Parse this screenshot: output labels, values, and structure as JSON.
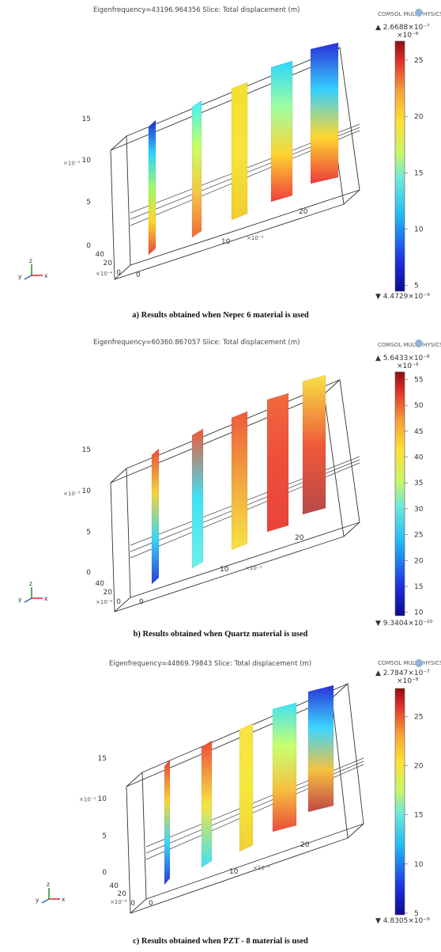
{
  "figures": [
    {
      "id": "a",
      "header": "Eigenfrequency=43196.964356    Slice: Total displacement (m)",
      "watermark": "COMSOL MULTIPHYSICS",
      "colorbar": {
        "max_label": "▲ 2.6688×10⁻⁷",
        "scale_label": "×10⁻⁸",
        "min_label": "▼ 4.4729×10⁻⁹",
        "ticks": [
          "25",
          "20",
          "15",
          "10",
          "5"
        ],
        "range": [
          4.4729,
          26.688
        ]
      },
      "axes": {
        "z_ticks": [
          "15",
          "10",
          "5",
          "0"
        ],
        "z_scale": "×10⁻³",
        "y_ticks": [
          "40",
          "20",
          "0"
        ],
        "y_scale": "×10⁻⁴",
        "x_ticks": [
          "10",
          "20"
        ],
        "x_scale": "×10⁻³",
        "x0": "0"
      },
      "slice_colors": [
        [
          "#1e2dd6",
          "#2ad6ff",
          "#9ff86a",
          "#ffd62a",
          "#e8443b"
        ],
        [
          "#3cf0ff",
          "#c6ff66",
          "#f5c84a",
          "#ee6b3a"
        ],
        [
          "#f3df2e",
          "#f7e43a",
          "#f0cd2c"
        ],
        [
          "#2ad6ff",
          "#a0ffa0",
          "#ffd230",
          "#ee3e3b"
        ],
        [
          "#2a2fd9",
          "#37d0ff",
          "#ffd830",
          "#ec3b3b"
        ]
      ],
      "caption": "a) Results obtained when Nepec 6 material is used"
    },
    {
      "id": "b",
      "header": "Eigenfrequency=60360.867057    Slice: Total displacement (m)",
      "watermark": "COMSOL MULTIPHYSICS",
      "colorbar": {
        "max_label": "▲ 5.6433×10⁻⁸",
        "scale_label": "×10⁻⁹",
        "min_label": "▼ 9.3404×10⁻¹⁰",
        "ticks": [
          "55",
          "50",
          "45",
          "40",
          "35",
          "30",
          "25",
          "20",
          "15",
          "10"
        ],
        "range": [
          9.3404,
          56.433
        ]
      },
      "axes": {
        "z_ticks": [
          "15",
          "10",
          "5",
          "0"
        ],
        "z_scale": "×10⁻³",
        "y_ticks": [
          "40",
          "20",
          "0"
        ],
        "y_scale": "×10⁻⁴",
        "x_ticks": [
          "10",
          "20"
        ],
        "x_scale": "×10⁻³",
        "x0": "0"
      },
      "slice_colors": [
        [
          "#ee4a3a",
          "#f0d63a",
          "#3ad6f8",
          "#2d3ad6"
        ],
        [
          "#ef5a3a",
          "#3fe2f5",
          "#6ff0e8"
        ],
        [
          "#ee5a3a",
          "#f1a640",
          "#f7e343"
        ],
        [
          "#ef6a3d",
          "#ee4d3a",
          "#e8443b"
        ],
        [
          "#f7e343",
          "#ef5a3a",
          "#b94848"
        ]
      ],
      "caption": "b) Results obtained when Quartz material is used"
    },
    {
      "id": "c",
      "header": "Eigenfrequency=44869.79843    Slice: Total displacement (m)",
      "watermark": "COMSOL MULTIPHYSICS",
      "colorbar": {
        "max_label": "▲ 2.7847×10⁻⁷",
        "scale_label": "×10⁻⁸",
        "min_label": "▼ 4.8305×10⁻⁹",
        "ticks": [
          "25",
          "20",
          "15",
          "10",
          "5"
        ],
        "range": [
          4.8305,
          27.847
        ]
      },
      "axes": {
        "z_ticks": [
          "15",
          "10",
          "5",
          "0"
        ],
        "z_scale": "×10⁻³",
        "y_ticks": [
          "40",
          "20",
          "0"
        ],
        "y_scale": "×10⁻⁴",
        "x_ticks": [
          "10",
          "20"
        ],
        "x_scale": "×10⁻³",
        "x0": "0"
      },
      "slice_colors": [
        [
          "#e8443b",
          "#f7d43a",
          "#3ad6f8",
          "#2d3ad6"
        ],
        [
          "#ee4a3a",
          "#f7e343",
          "#3fe2f5"
        ],
        [
          "#f7e343",
          "#f5e93a",
          "#f2d035"
        ],
        [
          "#3fe2f5",
          "#c8ff70",
          "#f5c240",
          "#ec4a3a"
        ],
        [
          "#2a2fd9",
          "#3ad6ff",
          "#f5c240",
          "#c24545"
        ]
      ],
      "caption": "c) Results obtained when PZT - 8 material is used"
    }
  ]
}
